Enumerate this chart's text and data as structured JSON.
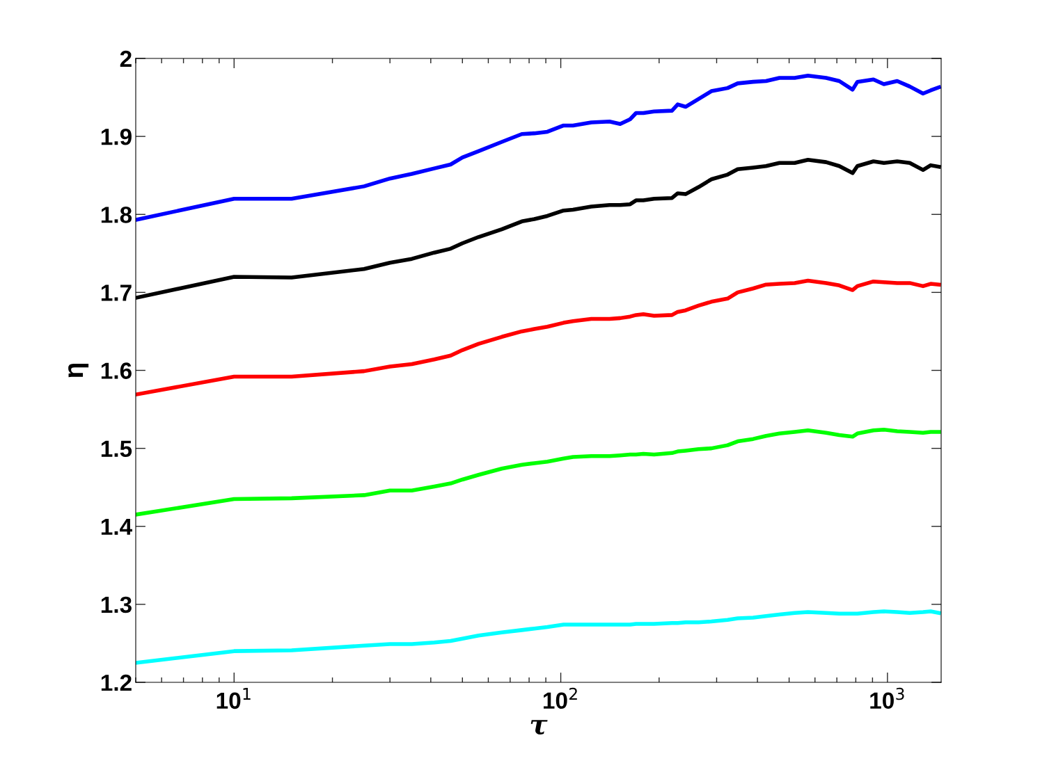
{
  "chart_data": {
    "type": "line",
    "xlabel": "τ",
    "ylabel": "η",
    "log": "x",
    "grid": false,
    "marker": "none",
    "line_style": "solid",
    "xlim": [
      5,
      1460
    ],
    "xticks": [
      {
        "value": 10,
        "label": "10$^{1}$"
      },
      {
        "value": 100,
        "label": "10$^{2}$"
      },
      {
        "value": 1000,
        "label": "10$^{3}$"
      }
    ],
    "ylim": [
      1.2,
      2
    ],
    "yticks": [
      1.2,
      1.3,
      1.4,
      1.5,
      1.6,
      1.7,
      1.8,
      1.9,
      2
    ],
    "x": [
      5,
      10,
      15,
      25,
      30,
      35,
      41,
      46,
      50,
      56,
      66,
      76,
      83,
      91,
      102,
      109,
      124,
      141,
      152,
      163,
      170,
      179,
      193,
      219,
      228,
      241,
      264,
      289,
      324,
      348,
      388,
      425,
      467,
      520,
      571,
      649,
      712,
      782,
      809,
      906,
      975,
      1071,
      1170,
      1285,
      1356,
      1438
    ],
    "series": [
      {
        "color": "#0000ff",
        "values": [
          1.793,
          1.82,
          1.82,
          1.836,
          1.846,
          1.852,
          1.859,
          1.864,
          1.873,
          1.881,
          1.893,
          1.903,
          1.904,
          1.906,
          1.914,
          1.914,
          1.918,
          1.919,
          1.916,
          1.922,
          1.93,
          1.93,
          1.932,
          1.933,
          1.941,
          1.938,
          1.948,
          1.958,
          1.962,
          1.968,
          1.97,
          1.971,
          1.975,
          1.975,
          1.978,
          1.975,
          1.971,
          1.96,
          1.97,
          1.973,
          1.967,
          1.971,
          1.964,
          1.955,
          1.959,
          1.963
        ]
      },
      {
        "color": "#000000",
        "values": [
          1.693,
          1.72,
          1.719,
          1.73,
          1.738,
          1.743,
          1.751,
          1.756,
          1.763,
          1.771,
          1.781,
          1.791,
          1.794,
          1.798,
          1.805,
          1.806,
          1.81,
          1.812,
          1.812,
          1.813,
          1.818,
          1.818,
          1.82,
          1.821,
          1.827,
          1.826,
          1.835,
          1.845,
          1.851,
          1.858,
          1.86,
          1.862,
          1.866,
          1.866,
          1.87,
          1.867,
          1.862,
          1.853,
          1.862,
          1.868,
          1.866,
          1.868,
          1.866,
          1.857,
          1.863,
          1.861
        ]
      },
      {
        "color": "#ff0000",
        "values": [
          1.569,
          1.592,
          1.592,
          1.599,
          1.605,
          1.608,
          1.614,
          1.619,
          1.626,
          1.634,
          1.643,
          1.65,
          1.653,
          1.656,
          1.661,
          1.663,
          1.666,
          1.666,
          1.667,
          1.669,
          1.671,
          1.672,
          1.67,
          1.671,
          1.675,
          1.677,
          1.683,
          1.688,
          1.692,
          1.7,
          1.705,
          1.71,
          1.711,
          1.712,
          1.715,
          1.712,
          1.709,
          1.703,
          1.708,
          1.714,
          1.713,
          1.712,
          1.712,
          1.708,
          1.711,
          1.71
        ]
      },
      {
        "color": "#00ff00",
        "values": [
          1.415,
          1.435,
          1.436,
          1.44,
          1.446,
          1.446,
          1.451,
          1.455,
          1.46,
          1.466,
          1.474,
          1.479,
          1.481,
          1.483,
          1.487,
          1.489,
          1.49,
          1.49,
          1.491,
          1.492,
          1.492,
          1.493,
          1.492,
          1.494,
          1.496,
          1.497,
          1.499,
          1.5,
          1.504,
          1.509,
          1.512,
          1.516,
          1.519,
          1.521,
          1.523,
          1.52,
          1.517,
          1.515,
          1.519,
          1.523,
          1.524,
          1.522,
          1.521,
          1.52,
          1.521,
          1.521
        ]
      },
      {
        "color": "#00ffff",
        "values": [
          1.225,
          1.24,
          1.241,
          1.247,
          1.249,
          1.249,
          1.251,
          1.253,
          1.256,
          1.26,
          1.264,
          1.267,
          1.269,
          1.271,
          1.274,
          1.274,
          1.274,
          1.274,
          1.274,
          1.274,
          1.275,
          1.275,
          1.275,
          1.276,
          1.276,
          1.277,
          1.277,
          1.278,
          1.28,
          1.282,
          1.283,
          1.285,
          1.287,
          1.289,
          1.29,
          1.289,
          1.288,
          1.288,
          1.288,
          1.29,
          1.291,
          1.29,
          1.289,
          1.29,
          1.291,
          1.289
        ]
      }
    ]
  }
}
